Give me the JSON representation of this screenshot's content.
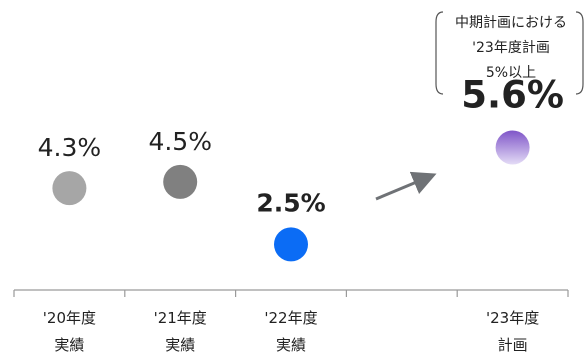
{
  "chart_data": {
    "type": "scatter",
    "categories": [
      {
        "line1": "'20年度",
        "line2": "実績"
      },
      {
        "line1": "'21年度",
        "line2": "実績"
      },
      {
        "line1": "'22年度",
        "line2": "実績"
      },
      {
        "line1": "",
        "line2": ""
      },
      {
        "line1": "'23年度",
        "line2": "計画"
      }
    ],
    "series": [
      {
        "points": [
          {
            "category_index": 0,
            "value": 4.3,
            "label": "4.3%",
            "color": "#a6a6a6",
            "emphasis": "normal"
          },
          {
            "category_index": 1,
            "value": 4.5,
            "label": "4.5%",
            "color": "#808080",
            "emphasis": "normal"
          },
          {
            "category_index": 2,
            "value": 2.5,
            "label": "2.5%",
            "color": "#0b6cf5",
            "emphasis": "bold"
          },
          {
            "category_index": 4,
            "value": 5.6,
            "label": "5.6%",
            "color_top": "#7f55c8",
            "color_bottom": "#e4dcf6",
            "label_color": "#1b2ee8",
            "emphasis": "plan"
          }
        ]
      }
    ],
    "annotation": {
      "lines": [
        "中期計画における",
        "'23年度計画",
        "5%以上"
      ],
      "category_index": 4
    },
    "trend_arrow": {
      "from_category_index": 3,
      "color": "#6f7276"
    },
    "ylim": [
      2.0,
      6.0
    ],
    "title": "",
    "xlabel": "",
    "ylabel": "",
    "grid": false,
    "legend": "none"
  }
}
